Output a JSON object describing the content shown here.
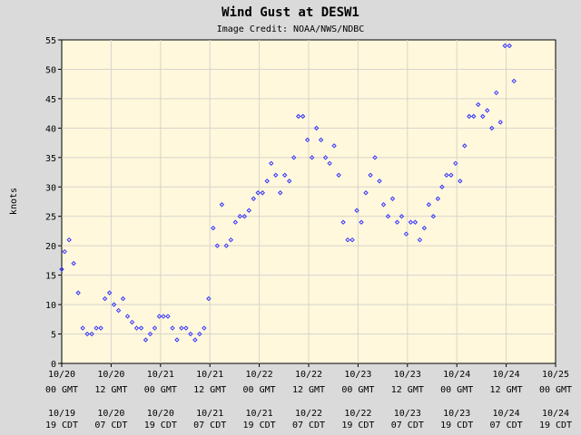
{
  "chart_data": {
    "type": "scatter",
    "title": "Wind Gust at DESW1",
    "subtitle": "Image Credit: NOAA/NWS/NDBC",
    "ylabel": "knots",
    "ylim": [
      0,
      55
    ],
    "yticks": [
      0,
      5,
      10,
      15,
      20,
      25,
      30,
      35,
      40,
      45,
      50,
      55
    ],
    "xlim_hours": [
      0,
      120
    ],
    "xticks": [
      {
        "h": 0,
        "gmt_date": "10/20",
        "gmt_time": "00 GMT",
        "cdt_date": "10/19",
        "cdt_time": "19 CDT"
      },
      {
        "h": 12,
        "gmt_date": "10/20",
        "gmt_time": "12 GMT",
        "cdt_date": "10/20",
        "cdt_time": "07 CDT"
      },
      {
        "h": 24,
        "gmt_date": "10/21",
        "gmt_time": "00 GMT",
        "cdt_date": "10/20",
        "cdt_time": "19 CDT"
      },
      {
        "h": 36,
        "gmt_date": "10/21",
        "gmt_time": "12 GMT",
        "cdt_date": "10/21",
        "cdt_time": "07 CDT"
      },
      {
        "h": 48,
        "gmt_date": "10/22",
        "gmt_time": "00 GMT",
        "cdt_date": "10/21",
        "cdt_time": "19 CDT"
      },
      {
        "h": 60,
        "gmt_date": "10/22",
        "gmt_time": "12 GMT",
        "cdt_date": "10/22",
        "cdt_time": "07 CDT"
      },
      {
        "h": 72,
        "gmt_date": "10/23",
        "gmt_time": "00 GMT",
        "cdt_date": "10/22",
        "cdt_time": "19 CDT"
      },
      {
        "h": 84,
        "gmt_date": "10/23",
        "gmt_time": "12 GMT",
        "cdt_date": "10/23",
        "cdt_time": "07 CDT"
      },
      {
        "h": 96,
        "gmt_date": "10/24",
        "gmt_time": "00 GMT",
        "cdt_date": "10/23",
        "cdt_time": "19 CDT"
      },
      {
        "h": 108,
        "gmt_date": "10/24",
        "gmt_time": "12 GMT",
        "cdt_date": "10/24",
        "cdt_time": "07 CDT"
      },
      {
        "h": 120,
        "gmt_date": "10/25",
        "gmt_time": "00 GMT",
        "cdt_date": "10/24",
        "cdt_time": "19 CDT"
      }
    ],
    "grid": true,
    "colors": {
      "background": "#dadada",
      "plot": "#fff8dc",
      "grid": "#d8d4cc",
      "marker": "#3333ff",
      "axis": "#000000"
    },
    "marker": "diamond",
    "points": [
      [
        0.0,
        16
      ],
      [
        0.7,
        19
      ],
      [
        1.8,
        21
      ],
      [
        2.9,
        17
      ],
      [
        4.0,
        12
      ],
      [
        5.1,
        6
      ],
      [
        6.2,
        5
      ],
      [
        7.3,
        5
      ],
      [
        8.4,
        6
      ],
      [
        9.5,
        6
      ],
      [
        10.5,
        11
      ],
      [
        11.6,
        12
      ],
      [
        12.7,
        10
      ],
      [
        13.8,
        9
      ],
      [
        14.9,
        11
      ],
      [
        16.0,
        8
      ],
      [
        17.1,
        7
      ],
      [
        18.2,
        6
      ],
      [
        19.3,
        6
      ],
      [
        20.4,
        4
      ],
      [
        21.5,
        5
      ],
      [
        22.6,
        6
      ],
      [
        23.7,
        8
      ],
      [
        24.7,
        8
      ],
      [
        25.8,
        8
      ],
      [
        26.9,
        6
      ],
      [
        28.0,
        4
      ],
      [
        29.1,
        6
      ],
      [
        30.2,
        6
      ],
      [
        31.3,
        5
      ],
      [
        32.4,
        4
      ],
      [
        33.5,
        5
      ],
      [
        34.6,
        6
      ],
      [
        35.7,
        11
      ],
      [
        36.8,
        23
      ],
      [
        37.8,
        20
      ],
      [
        38.9,
        27
      ],
      [
        40.0,
        20
      ],
      [
        41.1,
        21
      ],
      [
        42.2,
        24
      ],
      [
        43.3,
        25
      ],
      [
        44.4,
        25
      ],
      [
        45.5,
        26
      ],
      [
        46.6,
        28
      ],
      [
        47.7,
        29
      ],
      [
        48.8,
        29
      ],
      [
        49.9,
        31
      ],
      [
        50.9,
        34
      ],
      [
        52.0,
        32
      ],
      [
        53.1,
        29
      ],
      [
        54.2,
        32
      ],
      [
        55.3,
        31
      ],
      [
        56.4,
        35
      ],
      [
        57.5,
        42
      ],
      [
        58.6,
        42
      ],
      [
        59.7,
        38
      ],
      [
        60.8,
        35
      ],
      [
        61.9,
        40
      ],
      [
        63.0,
        38
      ],
      [
        64.1,
        35
      ],
      [
        65.1,
        34
      ],
      [
        66.2,
        37
      ],
      [
        67.3,
        32
      ],
      [
        68.4,
        24
      ],
      [
        69.5,
        21
      ],
      [
        70.6,
        21
      ],
      [
        71.7,
        26
      ],
      [
        72.8,
        24
      ],
      [
        73.9,
        29
      ],
      [
        75.0,
        32
      ],
      [
        76.1,
        35
      ],
      [
        77.2,
        31
      ],
      [
        78.2,
        27
      ],
      [
        79.3,
        25
      ],
      [
        80.4,
        28
      ],
      [
        81.5,
        24
      ],
      [
        82.6,
        25
      ],
      [
        83.7,
        22
      ],
      [
        84.8,
        24
      ],
      [
        85.9,
        24
      ],
      [
        87.0,
        21
      ],
      [
        88.1,
        23
      ],
      [
        89.2,
        27
      ],
      [
        90.3,
        25
      ],
      [
        91.4,
        28
      ],
      [
        92.4,
        30
      ],
      [
        93.5,
        32
      ],
      [
        94.6,
        32
      ],
      [
        95.7,
        34
      ],
      [
        96.8,
        31
      ],
      [
        97.9,
        37
      ],
      [
        99.0,
        42
      ],
      [
        100.1,
        42
      ],
      [
        101.2,
        44
      ],
      [
        102.3,
        42
      ],
      [
        103.4,
        43
      ],
      [
        104.5,
        40
      ],
      [
        105.6,
        46
      ],
      [
        106.6,
        41
      ],
      [
        107.7,
        54
      ],
      [
        108.8,
        54
      ],
      [
        109.9,
        48
      ]
    ]
  }
}
